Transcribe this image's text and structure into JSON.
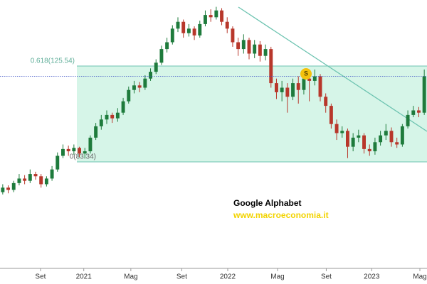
{
  "chart_data": {
    "type": "candlestick",
    "title": "Google Alphabet",
    "subtitle": "www.macroeconomia.it",
    "up_color": "#1e7b3c",
    "down_color": "#b8372b",
    "ylim": [
      36.45,
      154.6
    ],
    "xlim": [
      0,
      78
    ],
    "xticks": [
      {
        "value": 7.4,
        "label": "Set"
      },
      {
        "value": 15.3,
        "label": "2021"
      },
      {
        "value": 23.9,
        "label": "Mag"
      },
      {
        "value": 33.2,
        "label": "Set"
      },
      {
        "value": 41.6,
        "label": "2022"
      },
      {
        "value": 50.7,
        "label": "Mag"
      },
      {
        "value": 59.6,
        "label": "Set"
      },
      {
        "value": 67.9,
        "label": "2023"
      },
      {
        "value": 76.7,
        "label": "Mag"
      }
    ],
    "fib_levels": [
      {
        "value": 125.54,
        "label": "0.618(125.54)"
      },
      {
        "value": 83.34,
        "label": "0(83.34)"
      }
    ],
    "annotation": "S",
    "candles": [
      [
        70,
        73.5,
        69,
        72
      ],
      [
        72,
        73,
        69.5,
        71
      ],
      [
        71,
        75,
        70,
        74
      ],
      [
        74,
        78,
        73,
        76
      ],
      [
        76,
        77.5,
        73.5,
        75
      ],
      [
        75,
        80,
        74,
        78
      ],
      [
        78,
        79,
        75.5,
        77
      ],
      [
        77,
        78,
        72,
        73.5
      ],
      [
        73.5,
        77,
        72.5,
        76
      ],
      [
        76,
        81.5,
        75,
        80
      ],
      [
        80,
        87.5,
        79,
        86
      ],
      [
        86,
        91,
        85,
        89
      ],
      [
        89,
        90.5,
        86,
        88
      ],
      [
        88,
        91,
        86.5,
        89.5
      ],
      [
        89.5,
        90,
        85.5,
        87
      ],
      [
        87,
        89.5,
        85,
        88
      ],
      [
        88,
        95,
        87,
        94
      ],
      [
        94,
        100.5,
        93,
        99
      ],
      [
        99,
        104,
        97.5,
        102
      ],
      [
        102,
        106,
        100,
        104
      ],
      [
        104,
        105,
        100.5,
        102.5
      ],
      [
        102.5,
        107,
        101,
        105
      ],
      [
        105,
        111.5,
        104,
        110
      ],
      [
        110,
        116.5,
        109,
        115
      ],
      [
        115,
        119,
        113.5,
        117
      ],
      [
        117,
        118.5,
        114,
        116
      ],
      [
        116,
        121.5,
        115,
        120
      ],
      [
        120,
        124.5,
        119,
        123
      ],
      [
        123,
        128.5,
        122,
        127
      ],
      [
        127,
        134.5,
        126,
        133
      ],
      [
        133,
        138,
        131.5,
        136
      ],
      [
        136,
        143.5,
        135,
        142
      ],
      [
        142,
        147,
        140.5,
        145
      ],
      [
        145,
        146,
        138,
        140
      ],
      [
        140,
        144,
        138.5,
        142
      ],
      [
        142,
        143,
        137,
        139
      ],
      [
        139,
        145.5,
        138,
        144
      ],
      [
        144,
        150,
        143,
        148
      ],
      [
        148,
        150.5,
        145,
        147
      ],
      [
        147,
        151.6,
        146,
        150
      ],
      [
        150,
        151,
        143.5,
        145
      ],
      [
        145,
        147,
        140,
        142
      ],
      [
        142,
        143,
        134,
        136
      ],
      [
        136,
        138,
        130,
        133
      ],
      [
        133,
        139.5,
        131,
        137
      ],
      [
        137,
        138,
        128.5,
        131
      ],
      [
        131,
        137,
        129,
        135
      ],
      [
        135,
        136.5,
        127.5,
        130
      ],
      [
        130,
        135,
        128,
        133
      ],
      [
        133,
        134,
        116,
        118
      ],
      [
        118,
        120,
        111,
        114
      ],
      [
        114,
        119,
        110,
        116
      ],
      [
        116,
        118,
        105,
        112
      ],
      [
        112,
        120,
        110.5,
        118
      ],
      [
        118,
        121,
        109,
        115
      ],
      [
        115,
        122,
        113,
        120
      ],
      [
        120,
        121.5,
        110,
        119
      ],
      [
        119,
        124,
        117,
        121
      ],
      [
        121,
        122,
        110,
        112
      ],
      [
        112,
        113.5,
        105,
        108
      ],
      [
        108,
        109,
        98,
        100
      ],
      [
        100,
        102,
        93,
        96
      ],
      [
        96,
        99,
        94,
        97
      ],
      [
        97,
        98,
        85,
        90
      ],
      [
        90,
        96,
        88,
        94
      ],
      [
        94,
        97.5,
        92,
        95
      ],
      [
        95,
        96,
        87,
        89
      ],
      [
        89,
        91,
        86,
        88
      ],
      [
        88,
        94,
        86.5,
        92
      ],
      [
        92,
        97,
        90.5,
        95
      ],
      [
        95,
        100,
        93,
        97
      ],
      [
        97,
        98.5,
        90,
        92
      ],
      [
        92,
        94,
        89.5,
        91
      ],
      [
        91,
        100,
        90,
        99
      ],
      [
        99,
        106,
        98,
        104
      ],
      [
        104,
        108,
        103,
        106
      ],
      [
        106,
        107.5,
        103,
        105
      ],
      [
        105,
        124,
        104,
        121
      ]
    ]
  }
}
